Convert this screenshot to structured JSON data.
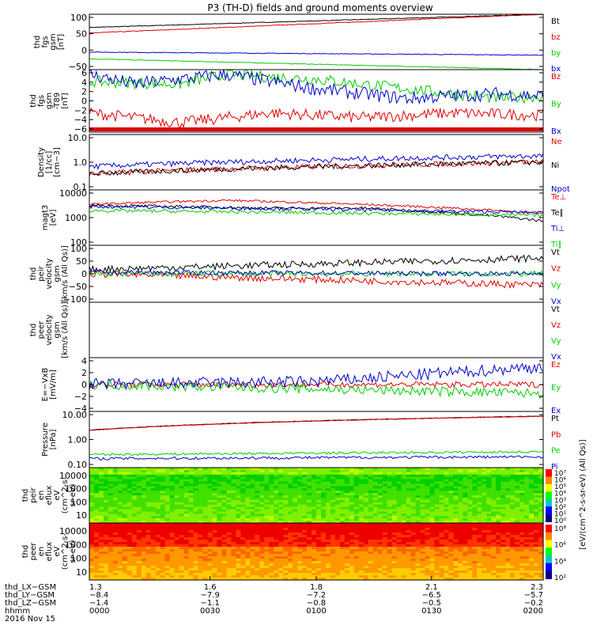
{
  "title": "P3 (TH-D) fields and ground moments overview",
  "colors": {
    "black": "#000000",
    "red": "#e00000",
    "green": "#00cc00",
    "blue": "#0000cc"
  },
  "chart_data": [
    {
      "type": "line",
      "panel": "fgs-gsm",
      "ylabel": [
        "thd",
        "fgs",
        "gsm",
        "[nT]"
      ],
      "yticks": [
        "100",
        "50",
        "0",
        "−50"
      ],
      "yrange": [
        -75,
        105
      ],
      "series": [
        {
          "name": "Bt",
          "color": "black",
          "x": [
            0,
            1
          ],
          "y": [
            62,
            105
          ],
          "noise": 1
        },
        {
          "name": "bz",
          "color": "red",
          "x": [
            0,
            1
          ],
          "y": [
            44,
            105
          ],
          "noise": 1
        },
        {
          "name": "by",
          "color": "green",
          "x": [
            0,
            1
          ],
          "y": [
            -40,
            -75
          ],
          "noise": 1
        },
        {
          "name": "bx",
          "color": "blue",
          "x": [
            0,
            1
          ],
          "y": [
            -18,
            -28
          ],
          "noise": 1
        }
      ]
    },
    {
      "type": "line",
      "panel": "fgs-t89",
      "ylabel": [
        "thd",
        "fgs",
        "gsm",
        "-T89",
        "[nT]"
      ],
      "yticks": [
        "6",
        "4",
        "2",
        "0",
        "−2",
        "−4",
        "−6"
      ],
      "yrange": [
        -7,
        6
      ],
      "series": [
        {
          "name": "Bz",
          "color": "red",
          "x": [
            0,
            0.2,
            0.4,
            0.6,
            0.8,
            1
          ],
          "y": [
            -3,
            -5,
            -3,
            -4,
            -3,
            -3.5
          ],
          "noise": 1.2
        },
        {
          "name": "By",
          "color": "green",
          "x": [
            0,
            0.2,
            0.3,
            0.5,
            0.7,
            0.9,
            1
          ],
          "y": [
            3.5,
            3,
            5,
            4,
            2,
            0,
            0.5
          ],
          "noise": 1.2
        },
        {
          "name": "Bx",
          "color": "blue",
          "x": [
            0,
            0.1,
            0.3,
            0.5,
            0.7,
            0.9,
            1
          ],
          "y": [
            5,
            3,
            5,
            2,
            0,
            1,
            0.5
          ],
          "noise": 1.4
        }
      ]
    },
    {
      "type": "line",
      "panel": "density",
      "ylabel": [
        "Density",
        "[1/cc]",
        "[cm−3]"
      ],
      "yticks": [
        "10.0",
        "1.0",
        "0.1"
      ],
      "log": true,
      "yrange": [
        0.1,
        10
      ],
      "series": [
        {
          "name": "Ne",
          "color": "red",
          "x": [
            0,
            1
          ],
          "y": [
            0.38,
            1.0
          ],
          "noise": 0.1
        },
        {
          "name": "Ni",
          "color": "black",
          "x": [
            0,
            1
          ],
          "y": [
            0.38,
            1.0
          ],
          "noise": 0.1
        },
        {
          "name": "Npot",
          "color": "blue",
          "x": [
            0,
            1
          ],
          "y": [
            0.7,
            1.7
          ],
          "noise": 0.1
        }
      ]
    },
    {
      "type": "line",
      "panel": "temperature",
      "ylabel": [
        "magt3",
        "[eV]"
      ],
      "yticks": [
        "10000",
        "1000",
        "100"
      ],
      "log": true,
      "yrange": [
        100,
        10000
      ],
      "series": [
        {
          "name": "Te⊥",
          "color": "red",
          "x": [
            0,
            0.3,
            1
          ],
          "y": [
            3000,
            4200,
            1400
          ],
          "noise": 0.04
        },
        {
          "name": "Te∥",
          "color": "black",
          "x": [
            0,
            0.4,
            0.6,
            1
          ],
          "y": [
            2800,
            2200,
            2200,
            750
          ],
          "noise": 0.05
        },
        {
          "name": "Ti⊥",
          "color": "blue",
          "x": [
            0,
            0.5,
            1
          ],
          "y": [
            2500,
            2000,
            1500
          ],
          "noise": 0.06
        },
        {
          "name": "Ti∥",
          "color": "green",
          "x": [
            0,
            0.5,
            1
          ],
          "y": [
            1800,
            1500,
            1200
          ],
          "noise": 0.06
        }
      ]
    },
    {
      "type": "line",
      "panel": "peir-velocity",
      "ylabel": [
        "thd",
        "peir",
        "velocity",
        "gsm",
        "[km/s (All Qs)]"
      ],
      "yticks": [
        "100",
        "50",
        "0",
        "−50",
        "−100"
      ],
      "yrange": [
        -100,
        100
      ],
      "series": [
        {
          "name": "Vt",
          "color": "black",
          "x": [
            0,
            1
          ],
          "y": [
            15,
            55
          ],
          "noise": 12
        },
        {
          "name": "Vz",
          "color": "red",
          "x": [
            0,
            1
          ],
          "y": [
            0,
            -40
          ],
          "noise": 12
        },
        {
          "name": "Vy",
          "color": "green",
          "x": [
            0,
            1
          ],
          "y": [
            0,
            0
          ],
          "noise": 10
        },
        {
          "name": "Vx",
          "color": "blue",
          "x": [
            0,
            1
          ],
          "y": [
            5,
            0
          ],
          "noise": 8
        }
      ]
    },
    {
      "type": "line",
      "panel": "peer-velocity",
      "ylabel": [
        "thd",
        "peer",
        "velocity",
        "gsm",
        "[km/s (All Qs)]"
      ],
      "yticks": [],
      "yrange": [
        -100,
        100
      ],
      "series": [
        {
          "name": "Vt",
          "color": "black",
          "x": [],
          "y": []
        },
        {
          "name": "Vz",
          "color": "red",
          "x": [],
          "y": []
        },
        {
          "name": "Vy",
          "color": "green",
          "x": [],
          "y": []
        },
        {
          "name": "Vx",
          "color": "blue",
          "x": [],
          "y": []
        }
      ]
    },
    {
      "type": "line",
      "panel": "efield",
      "ylabel": [
        "E=−VxB",
        "[mV/m]"
      ],
      "yticks": [
        "4",
        "2",
        "0",
        "−2",
        "−4"
      ],
      "yrange": [
        -4.5,
        4.5
      ],
      "series": [
        {
          "name": "Ez",
          "color": "red",
          "x": [
            0,
            1
          ],
          "y": [
            0,
            0
          ],
          "noise": 0.5
        },
        {
          "name": "Ey",
          "color": "green",
          "x": [
            0,
            1
          ],
          "y": [
            0,
            -1.5
          ],
          "noise": 0.8
        },
        {
          "name": "Ex",
          "color": "blue",
          "x": [
            0,
            0.5,
            1
          ],
          "y": [
            0,
            0.5,
            3
          ],
          "noise": 1.0
        }
      ]
    },
    {
      "type": "line",
      "panel": "pressure",
      "ylabel": [
        "Pressure",
        "[nPa]"
      ],
      "yticks": [
        "10.00",
        "1.00",
        "0.10"
      ],
      "log": true,
      "yrange": [
        0.04,
        12
      ],
      "series": [
        {
          "name": "Pt",
          "color": "black",
          "x": [
            0,
            1
          ],
          "y": [
            1.8,
            7.5
          ],
          "noise": 0.01
        },
        {
          "name": "Pb",
          "color": "red",
          "x": [
            0,
            1
          ],
          "y": [
            1.75,
            7.3
          ],
          "noise": 0.01
        },
        {
          "name": "Pe",
          "color": "green",
          "x": [
            0,
            1
          ],
          "y": [
            0.15,
            0.2
          ],
          "noise": 0.05
        },
        {
          "name": "Pi",
          "color": "blue",
          "x": [
            0,
            1
          ],
          "y": [
            0.1,
            0.12
          ],
          "noise": 0.06
        }
      ]
    },
    {
      "type": "heatmap",
      "panel": "peir-eflux",
      "ylabel": [
        "thd",
        "peir",
        "en",
        "eflux",
        "eV",
        "(cm^2-s-",
        "sr-eV)"
      ],
      "yticks": [
        "10000",
        "1000",
        "100",
        "10"
      ],
      "colorbar": {
        "label": "[eV/(cm^2-s-sr-eV) (All Qs)]",
        "ticks": [
          "10⁷",
          "10⁶",
          "10⁵",
          "10⁴",
          "10³",
          "10²",
          "10¹",
          "10⁰"
        ]
      }
    },
    {
      "type": "heatmap",
      "panel": "peer-eflux",
      "ylabel": [
        "thd",
        "peer",
        "en",
        "eflux",
        "eV",
        "(cm^2-s-",
        "sr-eV)"
      ],
      "yticks": [
        "10000",
        "1000",
        "100",
        "10"
      ],
      "colorbar": {
        "label": "[eV/(cm^2-s-sr-eV) (All Qs)]",
        "ticks": [
          "10⁸",
          "10⁶",
          "10⁴",
          "10²"
        ]
      }
    }
  ],
  "xaxis": {
    "rows": [
      {
        "label": "thd_LX−GSM",
        "values": [
          "1.3",
          "1.6",
          "1.8",
          "2.1",
          "2.3"
        ]
      },
      {
        "label": "thd_LY−GSM",
        "values": [
          "−8.4",
          "−7.9",
          "−7.2",
          "−6.5",
          "−5.7"
        ]
      },
      {
        "label": "thd_LZ−GSM",
        "values": [
          "−1.4",
          "−1.1",
          "−0.8",
          "−0.5",
          "−0.2"
        ]
      },
      {
        "label": "hhmm",
        "values": [
          "0000",
          "0030",
          "0100",
          "0130",
          "0200"
        ]
      }
    ],
    "date": "2016 Nov 15"
  }
}
